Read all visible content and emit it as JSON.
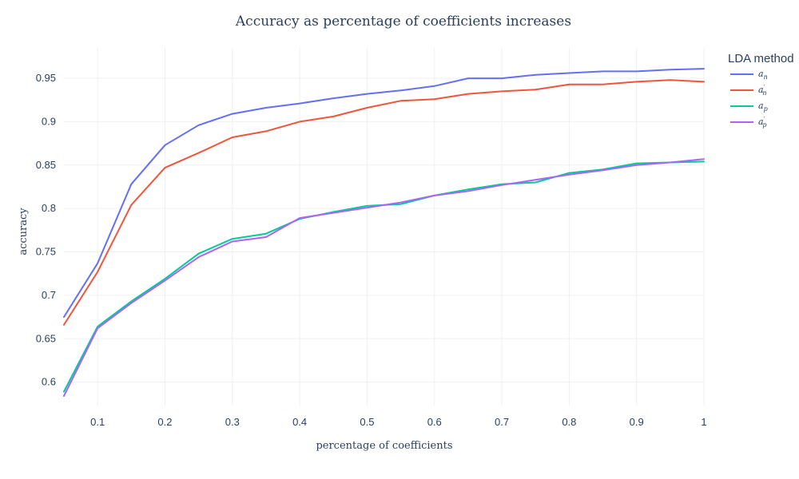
{
  "chart_data": {
    "type": "line",
    "title": "Accuracy as percentage of coefficients increases",
    "xlabel": "percentage of coefficients",
    "ylabel": "accuracy",
    "xlim": [
      0.05,
      1.0
    ],
    "ylim": [
      0.573,
      0.985
    ],
    "x_ticks": [
      0.1,
      0.2,
      0.3,
      0.4,
      0.5,
      0.6,
      0.7,
      0.8,
      0.9,
      1
    ],
    "x_tick_labels": [
      "0.1",
      "0.2",
      "0.3",
      "0.4",
      "0.5",
      "0.6",
      "0.7",
      "0.8",
      "0.9",
      "1"
    ],
    "y_ticks": [
      0.6,
      0.65,
      0.7,
      0.75,
      0.8,
      0.85,
      0.9,
      0.95
    ],
    "y_tick_labels": [
      "0.6",
      "0.65",
      "0.7",
      "0.75",
      "0.8",
      "0.85",
      "0.9",
      "0.95"
    ],
    "grid": true,
    "legend": {
      "title": "LDA method",
      "position": "top-right"
    },
    "x": [
      0.05,
      0.1,
      0.15,
      0.2,
      0.25,
      0.3,
      0.35,
      0.4,
      0.45,
      0.5,
      0.55,
      0.6,
      0.65,
      0.7,
      0.75,
      0.8,
      0.85,
      0.9,
      0.95,
      1.0
    ],
    "series": [
      {
        "name": "a_n",
        "base": "a",
        "sub": "n",
        "prime": false,
        "color": "#636efa",
        "values": [
          0.675,
          0.737,
          0.828,
          0.873,
          0.896,
          0.909,
          0.916,
          0.921,
          0.927,
          0.932,
          0.936,
          0.941,
          0.95,
          0.95,
          0.954,
          0.956,
          0.958,
          0.958,
          0.96,
          0.961
        ]
      },
      {
        "name": "a'_n",
        "base": "a",
        "sub": "n",
        "prime": true,
        "color": "#ef553b",
        "values": [
          0.666,
          0.727,
          0.804,
          0.847,
          0.864,
          0.882,
          0.889,
          0.9,
          0.906,
          0.916,
          0.924,
          0.926,
          0.932,
          0.935,
          0.937,
          0.943,
          0.943,
          0.946,
          0.948,
          0.946
        ]
      },
      {
        "name": "a_p",
        "base": "a",
        "sub": "p",
        "prime": false,
        "color": "#00cc96",
        "values": [
          0.589,
          0.664,
          0.693,
          0.719,
          0.748,
          0.765,
          0.771,
          0.788,
          0.796,
          0.803,
          0.805,
          0.815,
          0.822,
          0.828,
          0.83,
          0.841,
          0.845,
          0.852,
          0.853,
          0.854
        ]
      },
      {
        "name": "a'_p",
        "base": "a",
        "sub": "p",
        "prime": true,
        "color": "#ab63fa",
        "values": [
          0.584,
          0.662,
          0.691,
          0.717,
          0.744,
          0.762,
          0.767,
          0.789,
          0.795,
          0.801,
          0.807,
          0.815,
          0.82,
          0.827,
          0.833,
          0.839,
          0.844,
          0.85,
          0.853,
          0.857
        ]
      }
    ]
  }
}
